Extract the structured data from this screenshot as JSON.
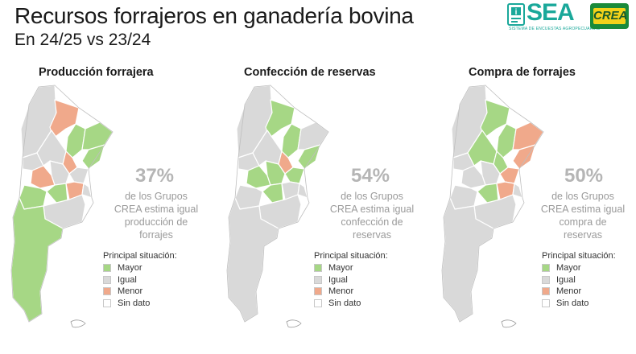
{
  "header": {
    "title": "Recursos forrajeros en ganadería bovina",
    "subtitle": "En 24/25 vs 23/24"
  },
  "logos": {
    "sea": "SEA",
    "sea_sub": "SISTEMA DE ENCUESTAS AGROPECUARIAS",
    "crea": "CREA"
  },
  "colors": {
    "mayor": "#a6d785",
    "igual": "#d9d9d9",
    "menor": "#f0a98b",
    "sin_dato": "#ffffff"
  },
  "legend": {
    "title": "Principal situación:",
    "items": [
      {
        "label": "Mayor",
        "key": "mayor"
      },
      {
        "label": "Igual",
        "key": "igual"
      },
      {
        "label": "Menor",
        "key": "menor"
      },
      {
        "label": "Sin dato",
        "key": "sin_dato"
      }
    ]
  },
  "panels": [
    {
      "title": "Producción forrajera",
      "percent": "37%",
      "description": "de los Grupos CREA estima igual producción de forrajes",
      "regions": {
        "noa": "igual",
        "nea_north": "menor",
        "chaco": "mayor",
        "misiones": "mayor",
        "corrientes": "mayor",
        "cuyo_norte": "igual",
        "cordoba_n": "igual",
        "santafe_n": "menor",
        "cuyo_sur": "menor",
        "cordoba_s": "igual",
        "entre_rios": "igual",
        "lapampa": "mayor",
        "bsas_oeste": "mayor",
        "bsas_centro": "menor",
        "bsas_norte": "igual",
        "amba": "sin_dato",
        "bsas_sur": "igual",
        "patagonia": "mayor"
      }
    },
    {
      "title": "Confección de reservas",
      "percent": "54%",
      "description": "de los Grupos CREA estima igual confección de reservas",
      "regions": {
        "noa": "igual",
        "nea_north": "mayor",
        "chaco": "mayor",
        "misiones": "igual",
        "corrientes": "mayor",
        "cuyo_norte": "igual",
        "cordoba_n": "igual",
        "santafe_n": "menor",
        "cuyo_sur": "mayor",
        "cordoba_s": "mayor",
        "entre_rios": "mayor",
        "lapampa": "igual",
        "bsas_oeste": "mayor",
        "bsas_centro": "igual",
        "bsas_norte": "igual",
        "amba": "sin_dato",
        "bsas_sur": "igual",
        "patagonia": "igual"
      }
    },
    {
      "title": "Compra de forrajes",
      "percent": "50%",
      "description": "de los Grupos CREA estima igual compra de reservas",
      "regions": {
        "noa": "igual",
        "nea_north": "mayor",
        "chaco": "mayor",
        "misiones": "menor",
        "corrientes": "menor",
        "cuyo_norte": "igual",
        "cordoba_n": "mayor",
        "santafe_n": "mayor",
        "cuyo_sur": "igual",
        "cordoba_s": "igual",
        "entre_rios": "menor",
        "lapampa": "igual",
        "bsas_oeste": "mayor",
        "bsas_centro": "menor",
        "bsas_norte": "igual",
        "amba": "sin_dato",
        "bsas_sur": "igual",
        "patagonia": "igual"
      }
    }
  ]
}
